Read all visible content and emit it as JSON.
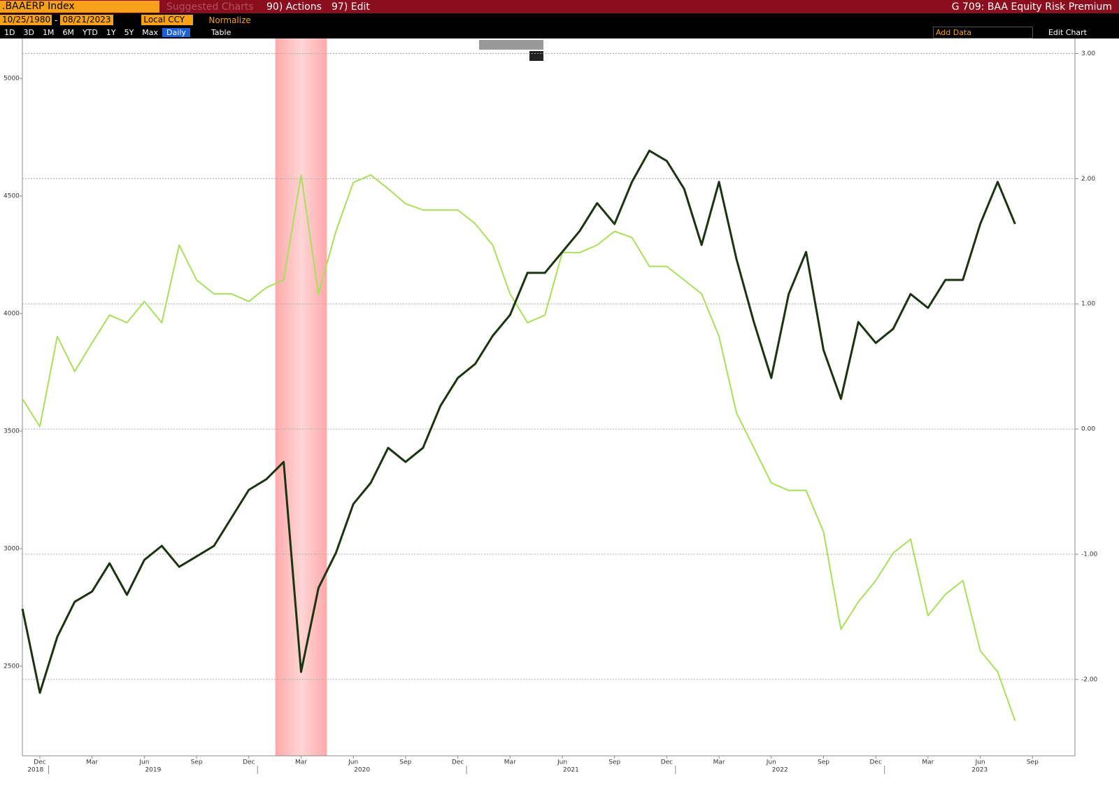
{
  "toolbar": {
    "ticker": ".BAAERP Index",
    "suggested": "Suggested Charts",
    "actions": "90) Actions",
    "edit": "97) Edit",
    "page_title": "G 709: BAA Equity Risk Premium",
    "start_date": "10/25/1980",
    "end_date": "08/21/2023",
    "currency": "Local CCY",
    "normalize": "Normalize",
    "periods": [
      "1D",
      "3D",
      "1M",
      "6M",
      "YTD",
      "1Y",
      "5Y",
      "Max"
    ],
    "frequency": "Daily",
    "table": "Table",
    "add_data": "Add Data",
    "edit_chart": "Edit Chart"
  },
  "chart_data": {
    "type": "line",
    "x": [
      "2018-11",
      "2018-12",
      "2019-01",
      "2019-02",
      "2019-03",
      "2019-04",
      "2019-05",
      "2019-06",
      "2019-07",
      "2019-08",
      "2019-09",
      "2019-10",
      "2019-11",
      "2019-12",
      "2020-01",
      "2020-02",
      "2020-03",
      "2020-04",
      "2020-05",
      "2020-06",
      "2020-07",
      "2020-08",
      "2020-09",
      "2020-10",
      "2020-11",
      "2020-12",
      "2021-01",
      "2021-02",
      "2021-03",
      "2021-04",
      "2021-05",
      "2021-06",
      "2021-07",
      "2021-08",
      "2021-09",
      "2021-10",
      "2021-11",
      "2021-12",
      "2022-01",
      "2022-02",
      "2022-03",
      "2022-04",
      "2022-05",
      "2022-06",
      "2022-07",
      "2022-08",
      "2022-09",
      "2022-10",
      "2022-11",
      "2022-12",
      "2023-01",
      "2023-02",
      "2023-03",
      "2023-04",
      "2023-05",
      "2023-06",
      "2023-07",
      "2023-08"
    ],
    "series": [
      {
        "color": "#a8e05a",
        "axis": "y2",
        "values": [
          0.24,
          0.02,
          0.74,
          0.46,
          0.69,
          0.91,
          0.85,
          1.02,
          0.85,
          1.47,
          1.19,
          1.08,
          1.08,
          1.02,
          1.13,
          1.19,
          2.03,
          1.08,
          1.58,
          1.97,
          2.03,
          1.92,
          1.8,
          1.75,
          1.75,
          1.75,
          1.64,
          1.47,
          1.08,
          0.85,
          0.91,
          1.41,
          1.41,
          1.47,
          1.58,
          1.53,
          1.3,
          1.3,
          1.19,
          1.08,
          0.74,
          0.13,
          -0.15,
          -0.43,
          -0.49,
          -0.49,
          -0.82,
          -1.6,
          -1.38,
          -1.21,
          -0.99,
          -0.88,
          -1.49,
          -1.32,
          -1.21,
          -1.77,
          -1.94,
          -2.33
        ]
      },
      {
        "color": "#1a3310",
        "values": [
          2744,
          2387,
          2625,
          2774,
          2818,
          2938,
          2804,
          2952,
          3012,
          2923,
          2967,
          3012,
          3131,
          3250,
          3295,
          3369,
          2476,
          2833,
          2982,
          3190,
          3280,
          3429,
          3369,
          3429,
          3607,
          3726,
          3786,
          3905,
          3994,
          4173,
          4173,
          4262,
          4351,
          4470,
          4381,
          4560,
          4693,
          4649,
          4530,
          4292,
          4560,
          4232,
          3964,
          3726,
          4083,
          4262,
          3845,
          3637,
          3964,
          3875,
          3935,
          4083,
          4024,
          4143,
          4143,
          4381,
          4560,
          4381
        ]
      }
    ],
    "ylim": [
      2119,
      5170
    ],
    "yticks": [
      2500,
      3000,
      3500,
      4000,
      4500,
      5000
    ],
    "y2lim": [
      -2.61,
      3.12
    ],
    "y2ticks": [
      {
        "value": -2,
        "label": "-2.00"
      },
      {
        "value": -1,
        "label": "-1.00"
      },
      {
        "value": 0,
        "label": "0.00"
      },
      {
        "value": 1,
        "label": "1.00"
      },
      {
        "value": 2,
        "label": "2.00"
      },
      {
        "value": 3,
        "label": "3.00"
      }
    ],
    "xticks": [
      {
        "value": "2018-12",
        "label": "Dec"
      },
      {
        "value": "2019-03",
        "label": "Mar"
      },
      {
        "value": "2019-06",
        "label": "Jun"
      },
      {
        "value": "2019-09",
        "label": "Sep"
      },
      {
        "value": "2019-12",
        "label": "Dec"
      },
      {
        "value": "2020-03",
        "label": "Mar"
      },
      {
        "value": "2020-06",
        "label": "Jun"
      },
      {
        "value": "2020-09",
        "label": "Sep"
      },
      {
        "value": "2020-12",
        "label": "Dec"
      },
      {
        "value": "2021-03",
        "label": "Mar"
      },
      {
        "value": "2021-06",
        "label": "Jun"
      },
      {
        "value": "2021-09",
        "label": "Sep"
      },
      {
        "value": "2021-12",
        "label": "Dec"
      },
      {
        "value": "2022-03",
        "label": "Mar"
      },
      {
        "value": "2022-06",
        "label": "Jun"
      },
      {
        "value": "2022-09",
        "label": "Sep"
      },
      {
        "value": "2022-12",
        "label": "Dec"
      },
      {
        "value": "2023-03",
        "label": "Mar"
      },
      {
        "value": "2023-06",
        "label": "Jun"
      },
      {
        "value": "2023-09",
        "label": "Sep"
      }
    ],
    "x_years": [
      2018,
      2019,
      2020,
      2021,
      2022,
      2023
    ],
    "shaded_range": [
      "2020-02",
      "2020-04"
    ],
    "grid": true
  }
}
